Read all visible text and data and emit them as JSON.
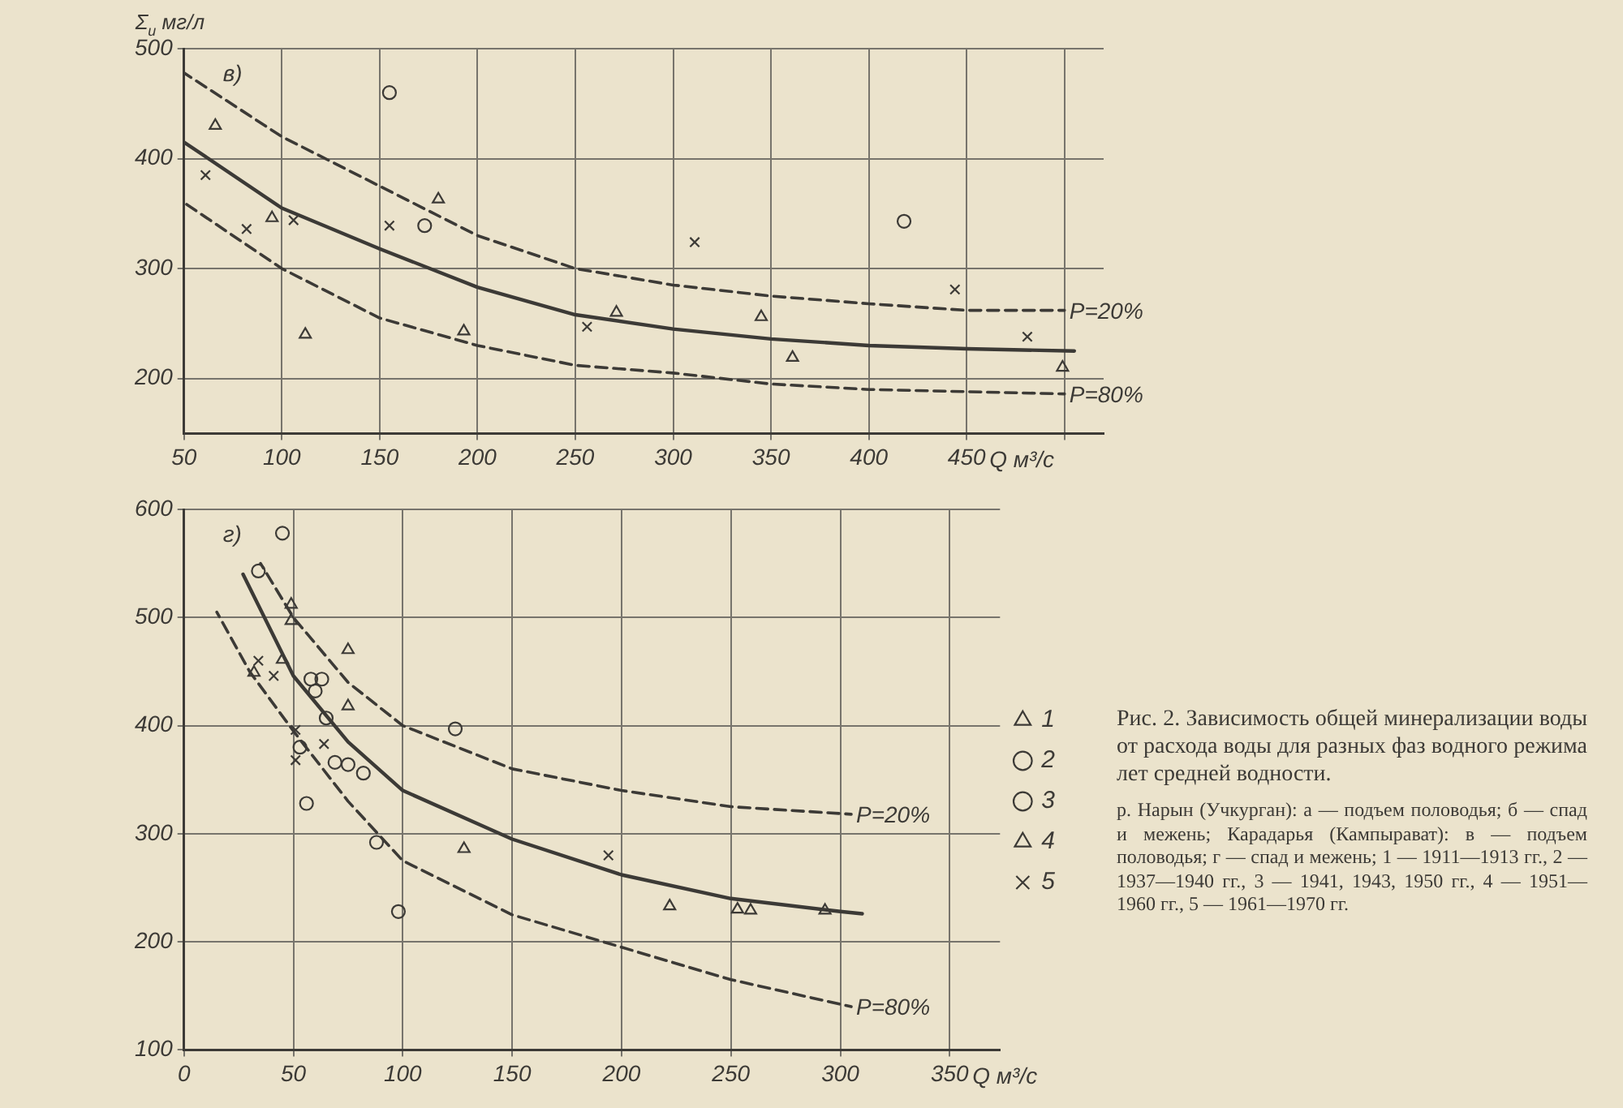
{
  "chart_data": [
    {
      "type": "scatter",
      "ylabel": "Σ$_{и}$ мг/л",
      "xlabel": "Q м³/с",
      "annotations": [
        "в)"
      ],
      "xlim": [
        50,
        520
      ],
      "ylim": [
        150,
        500
      ],
      "xticks": [
        50,
        100,
        150,
        200,
        250,
        300,
        350,
        400,
        450,
        {
          "value": 500,
          "label": null
        }
      ],
      "yticks": [
        200,
        300,
        400,
        500
      ],
      "grid": true,
      "legend": false,
      "series": [
        {
          "color": "#3c3a36",
          "marker": "circle",
          "x": [
            155,
            173,
            418
          ],
          "values": [
            460,
            339,
            343
          ]
        },
        {
          "color": "#3c3a36",
          "marker": "triangle",
          "x": [
            66,
            95,
            112,
            180,
            193,
            271,
            345,
            361,
            499
          ],
          "values": [
            430,
            346,
            240,
            363,
            243,
            260,
            256,
            219,
            210
          ]
        },
        {
          "color": "#3c3a36",
          "marker": "cross",
          "x": [
            61,
            82,
            106,
            155,
            256,
            311,
            444,
            481
          ],
          "values": [
            385,
            336,
            344,
            339,
            247,
            324,
            281,
            238
          ]
        },
        {
          "type": "line",
          "color": "#3c3a36",
          "marker": "none",
          "line_style": "solid",
          "x": [
            50,
            100,
            150,
            200,
            250,
            300,
            350,
            400,
            450,
            505
          ],
          "values": [
            415,
            355,
            318,
            283,
            258,
            245,
            236,
            230,
            227,
            225
          ]
        },
        {
          "type": "line",
          "name": "P=20%",
          "color": "#3c3a36",
          "marker": "none",
          "line_style": "dashed",
          "x": [
            50,
            100,
            150,
            200,
            250,
            300,
            350,
            400,
            450,
            500
          ],
          "values": [
            478,
            420,
            375,
            330,
            300,
            285,
            275,
            268,
            262,
            262
          ]
        },
        {
          "type": "line",
          "name": "P=80%",
          "color": "#3c3a36",
          "marker": "none",
          "line_style": "dashed",
          "x": [
            50,
            100,
            150,
            200,
            250,
            300,
            350,
            400,
            450,
            500
          ],
          "values": [
            360,
            300,
            255,
            230,
            212,
            205,
            195,
            190,
            188,
            186
          ]
        }
      ]
    },
    {
      "type": "scatter",
      "xlabel": "Q м³/с",
      "xlim": [
        0,
        373
      ],
      "ylim": [
        100,
        600
      ],
      "xticks": [
        0,
        50,
        100,
        150,
        200,
        250,
        300,
        350
      ],
      "yticks": [
        100,
        200,
        300,
        400,
        500,
        600
      ],
      "grid": true,
      "legend": "right",
      "annotations": [
        "г)",
        "Рис. 2. Зависимость общей минерализации воды от расхода воды для разных фаз водного режима лет средней водности.",
        "р. Нарын (Учкурган): а — подъем половодья; б — спад и межень; Карадарья (Кампырават): в — подъем половодья; г — спад и межень; 1 — 1911—1913 гг., 2 — 1937—1940 гг., 3 — 1941, 1943, 1950 гг., 4 — 1951—1960 гг., 5 — 1961—1970 гг."
      ],
      "series": [
        {
          "name": "1",
          "color": "#3c3a36",
          "marker": "triangle"
        },
        {
          "name": "2",
          "color": "#3c3a36",
          "marker": "circle"
        },
        {
          "name": "3",
          "color": "#3c3a36",
          "marker": "circle",
          "x": [
            45,
            34,
            58,
            63,
            60,
            65,
            53,
            69,
            75,
            82,
            56,
            88,
            98,
            124
          ],
          "values": [
            578,
            543,
            443,
            443,
            432,
            407,
            380,
            366,
            364,
            356,
            328,
            292,
            228,
            397
          ]
        },
        {
          "name": "4",
          "color": "#3c3a36",
          "marker": "triangle",
          "x": [
            49,
            49,
            75,
            45,
            32,
            75,
            128,
            222,
            253,
            259,
            293
          ],
          "values": [
            512,
            497,
            470,
            461,
            449,
            418,
            286,
            233,
            230,
            229,
            229
          ]
        },
        {
          "name": "5",
          "color": "#3c3a36",
          "marker": "cross",
          "x": [
            34,
            41,
            51,
            64,
            51,
            194
          ],
          "values": [
            460,
            446,
            396,
            383,
            368,
            280
          ]
        },
        {
          "type": "line",
          "color": "#3c3a36",
          "marker": "none",
          "line_style": "solid",
          "x": [
            27,
            50,
            75,
            100,
            150,
            200,
            250,
            300,
            310
          ],
          "values": [
            540,
            446,
            385,
            340,
            295,
            262,
            240,
            228,
            226
          ]
        },
        {
          "type": "line",
          "name": "P=20%",
          "color": "#3c3a36",
          "marker": "none",
          "line_style": "dashed",
          "x": [
            35,
            50,
            75,
            100,
            150,
            200,
            250,
            305
          ],
          "values": [
            550,
            500,
            440,
            400,
            360,
            340,
            325,
            318
          ]
        },
        {
          "type": "line",
          "name": "P=80%",
          "color": "#3c3a36",
          "marker": "none",
          "line_style": "dashed",
          "x": [
            15,
            30,
            50,
            75,
            100,
            150,
            200,
            250,
            305
          ],
          "values": [
            505,
            450,
            395,
            330,
            275,
            225,
            195,
            165,
            140
          ]
        }
      ]
    }
  ]
}
